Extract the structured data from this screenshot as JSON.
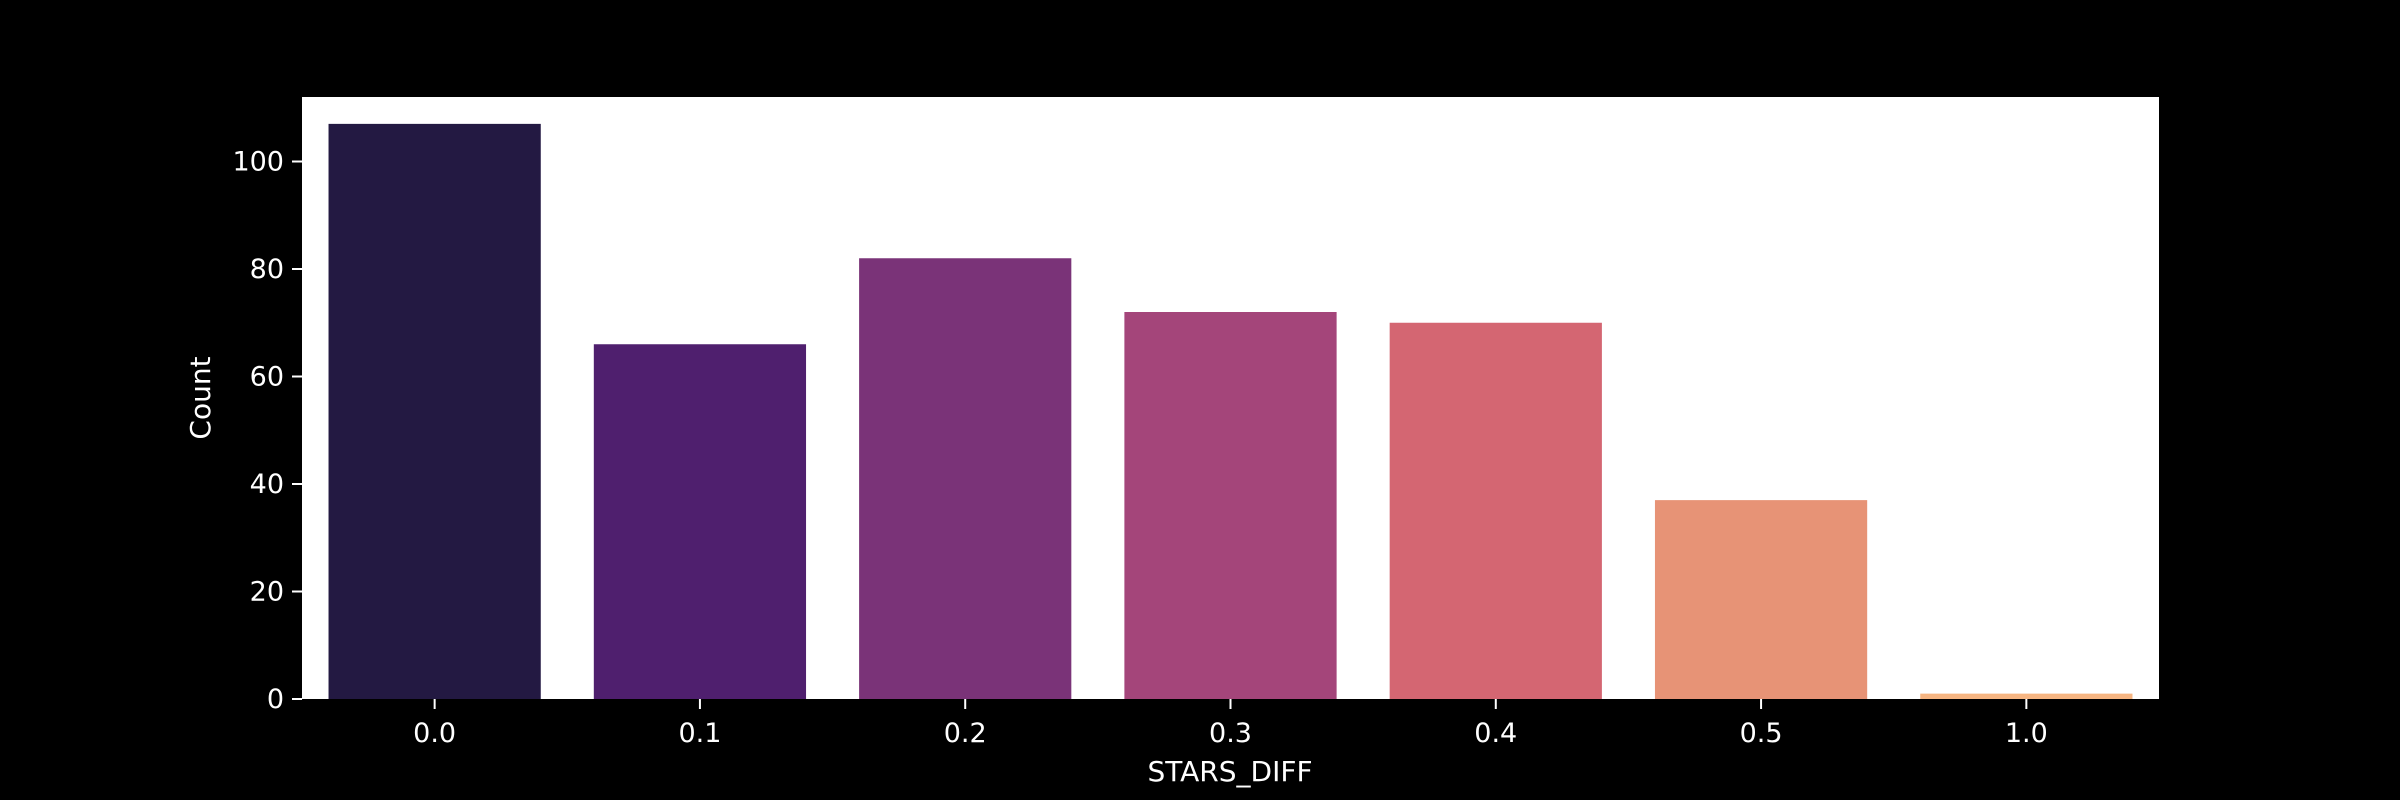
{
  "chart_data": {
    "type": "bar",
    "title": "",
    "xlabel": "STARS_DIFF",
    "ylabel": "Count",
    "categories": [
      "0.0",
      "0.1",
      "0.2",
      "0.3",
      "0.4",
      "0.5",
      "1.0"
    ],
    "values": [
      107,
      66,
      82,
      72,
      70,
      37,
      1
    ],
    "ylim": [
      0,
      112
    ],
    "yticks": [
      0,
      20,
      40,
      60,
      80,
      100
    ],
    "colors": [
      "#231942",
      "#4f1f6e",
      "#7a3378",
      "#a4457a",
      "#d46672",
      "#e79376",
      "#f6b582"
    ],
    "grid": false,
    "legend": "none"
  },
  "figure": {
    "background": "#000000",
    "plot_background": "#ffffff",
    "text_color": "#ffffff"
  }
}
